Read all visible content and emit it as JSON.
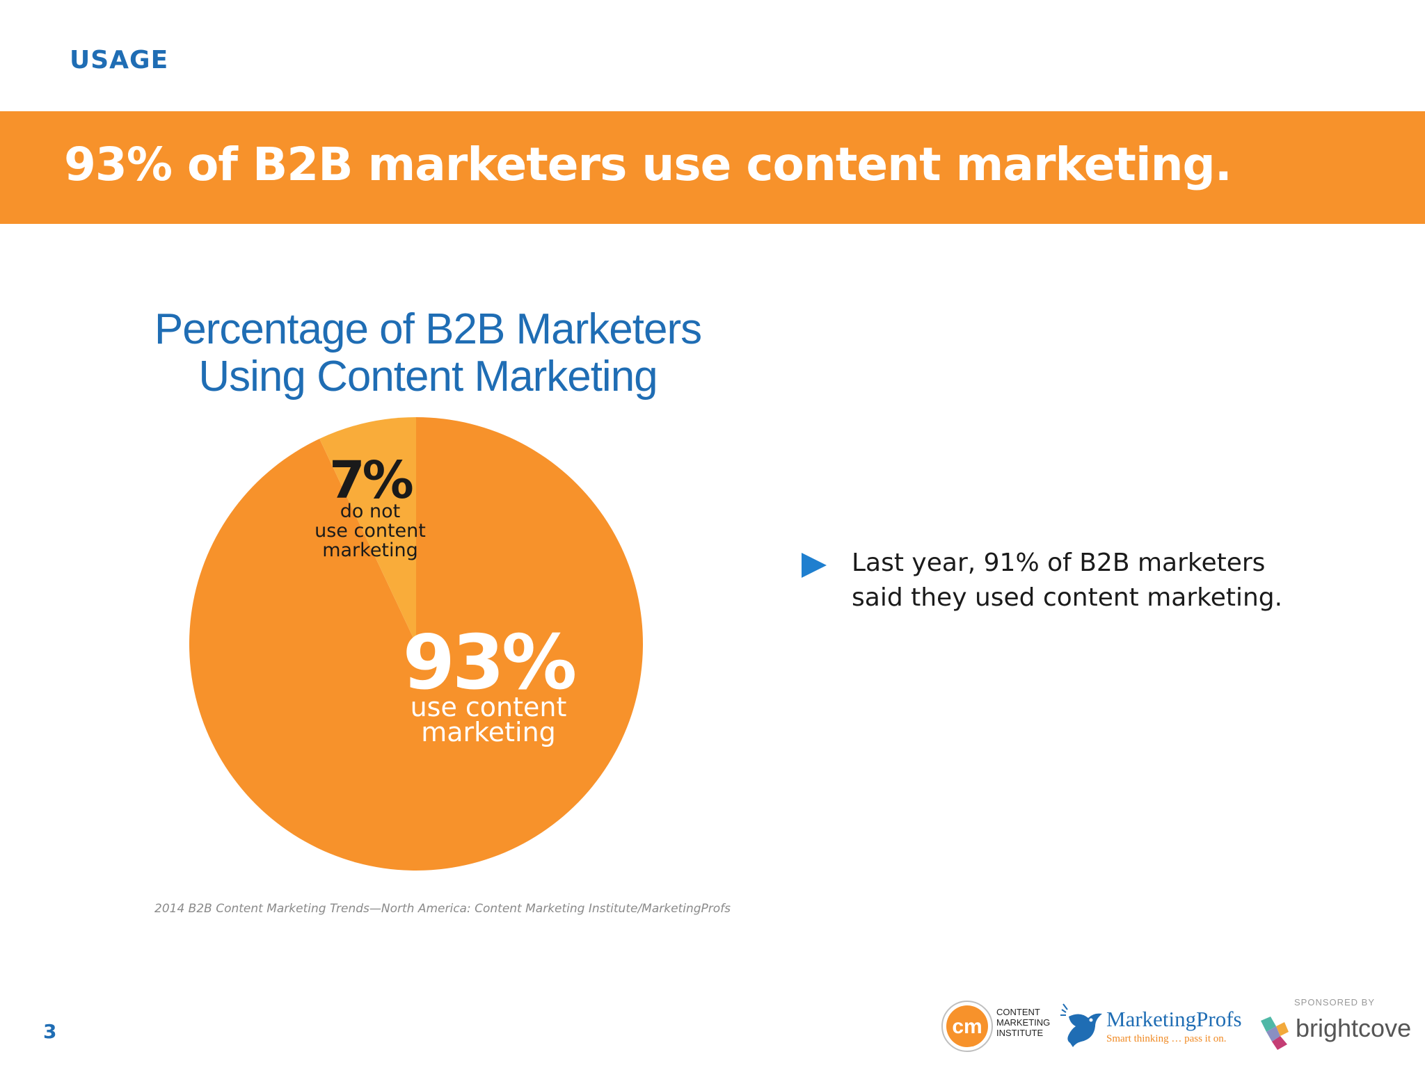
{
  "section_label": "USAGE",
  "banner_title": "93% of B2B marketers use content marketing.",
  "chart_data": {
    "type": "pie",
    "title_lines": [
      "Percentage of B2B Marketers",
      "Using Content Marketing"
    ],
    "slices": [
      {
        "label_lines": [
          "use content",
          "marketing"
        ],
        "value": 93,
        "value_label": "93%",
        "color": "#f7922b",
        "label_color": "#ffffff"
      },
      {
        "label_lines": [
          "do not",
          "use content",
          "marketing"
        ],
        "value": 7,
        "value_label": "7%",
        "color": "#f9ac3a",
        "label_color": "#1a1a1a"
      }
    ],
    "source": "2014 B2B Content Marketing Trends—North America: Content Marketing Institute/MarketingProfs"
  },
  "bullet": {
    "icon": "play-triangle-icon",
    "lines": [
      "Last year, 91% of B2B marketers",
      "said they used content marketing."
    ],
    "color": "#1f6db4"
  },
  "page_number": "3",
  "logos": {
    "cmi": {
      "mark": "cm",
      "lines": [
        "CONTENT",
        "MARKETING",
        "INSTITUTE"
      ]
    },
    "marketingprofs": {
      "name": "MarketingProfs",
      "tagline": "Smart thinking … pass it on."
    },
    "sponsor": {
      "label": "SPONSORED BY",
      "name": "brightcove"
    }
  },
  "colors": {
    "brand_blue": "#1f6db4",
    "brand_orange": "#f7922b"
  }
}
